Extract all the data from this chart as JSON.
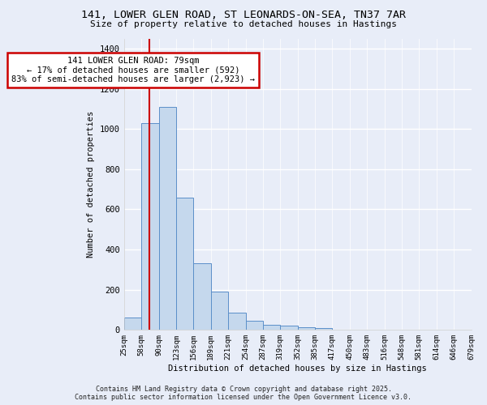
{
  "title_line1": "141, LOWER GLEN ROAD, ST LEONARDS-ON-SEA, TN37 7AR",
  "title_line2": "Size of property relative to detached houses in Hastings",
  "xlabel": "Distribution of detached houses by size in Hastings",
  "ylabel": "Number of detached properties",
  "bar_values": [
    60,
    1030,
    1110,
    660,
    330,
    190,
    85,
    45,
    25,
    20,
    15,
    10,
    0,
    0,
    0,
    0,
    0,
    0,
    0,
    0
  ],
  "bin_labels": [
    "25sqm",
    "58sqm",
    "90sqm",
    "123sqm",
    "156sqm",
    "189sqm",
    "221sqm",
    "254sqm",
    "287sqm",
    "319sqm",
    "352sqm",
    "385sqm",
    "417sqm",
    "450sqm",
    "483sqm",
    "516sqm",
    "548sqm",
    "581sqm",
    "614sqm",
    "646sqm",
    "679sqm"
  ],
  "bar_color": "#c5d8ed",
  "bar_edge_color": "#5b8fc9",
  "background_color": "#e8edf8",
  "grid_color": "#ffffff",
  "ylim": [
    0,
    1450
  ],
  "yticks": [
    0,
    200,
    400,
    600,
    800,
    1000,
    1200,
    1400
  ],
  "red_line_x": 1.45,
  "annotation_text": "141 LOWER GLEN ROAD: 79sqm\n← 17% of detached houses are smaller (592)\n83% of semi-detached houses are larger (2,923) →",
  "annotation_box_facecolor": "#ffffff",
  "annotation_box_edgecolor": "#cc0000",
  "footer_line1": "Contains HM Land Registry data © Crown copyright and database right 2025.",
  "footer_line2": "Contains public sector information licensed under the Open Government Licence v3.0."
}
